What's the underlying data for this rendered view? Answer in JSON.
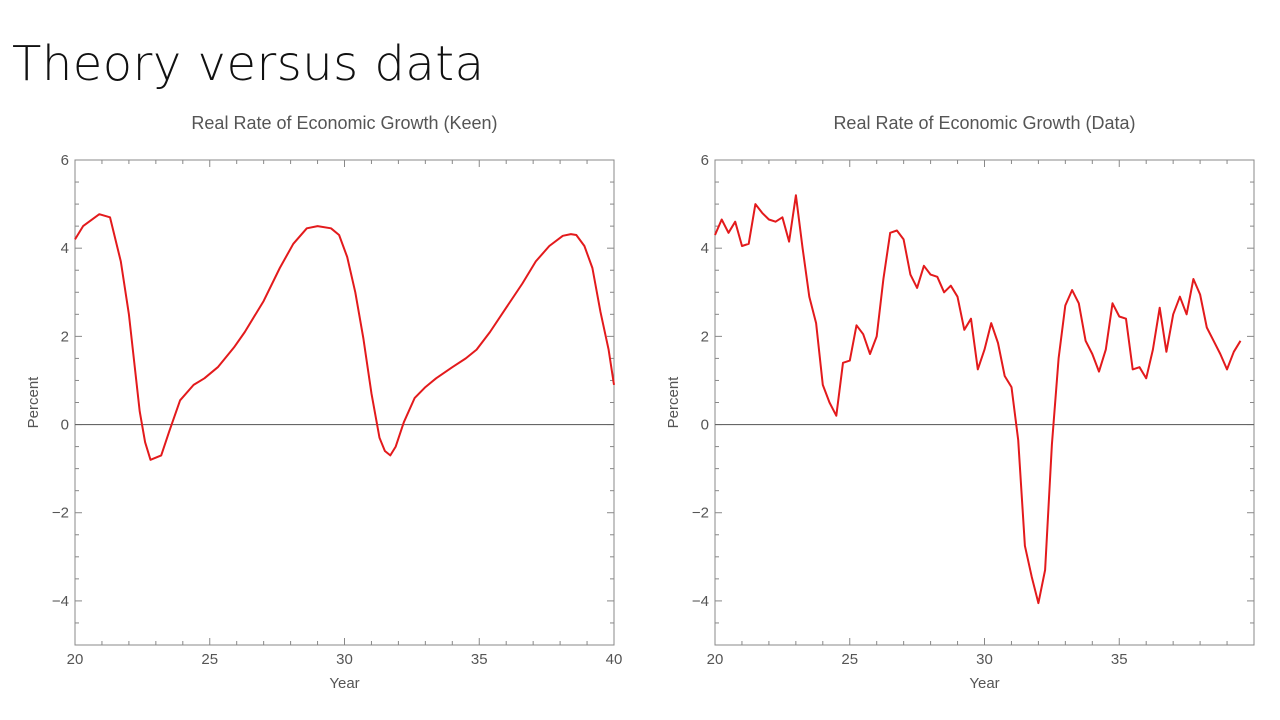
{
  "slide": {
    "title": "Theory versus data"
  },
  "chart_data": [
    {
      "type": "line",
      "title": "Real Rate of Economic Growth (Keen)",
      "xlabel": "Year",
      "ylabel": "Percent",
      "xlim": [
        20,
        40
      ],
      "ylim": [
        -5,
        6
      ],
      "xticks": [
        20,
        25,
        30,
        35,
        40
      ],
      "yticks": [
        6,
        4,
        2,
        0,
        -2,
        -4
      ],
      "grid": false,
      "line_color": "#e31a1c",
      "x": [
        20.0,
        20.3,
        20.9,
        21.3,
        21.7,
        22.0,
        22.2,
        22.4,
        22.6,
        22.8,
        23.2,
        23.5,
        23.9,
        24.4,
        24.8,
        25.3,
        25.9,
        26.3,
        27.0,
        27.6,
        28.1,
        28.6,
        29.0,
        29.5,
        29.8,
        30.1,
        30.4,
        30.7,
        31.0,
        31.3,
        31.5,
        31.7,
        31.9,
        32.2,
        32.6,
        33.0,
        33.4,
        34.0,
        34.5,
        34.9,
        35.4,
        36.0,
        36.6,
        37.1,
        37.6,
        38.1,
        38.4,
        38.6,
        38.9,
        39.2,
        39.5,
        39.8,
        40.0
      ],
      "y": [
        4.2,
        4.5,
        4.77,
        4.7,
        3.7,
        2.5,
        1.4,
        0.3,
        -0.4,
        -0.8,
        -0.7,
        -0.15,
        0.55,
        0.9,
        1.05,
        1.3,
        1.75,
        2.1,
        2.8,
        3.55,
        4.1,
        4.45,
        4.5,
        4.45,
        4.3,
        3.8,
        3.0,
        1.95,
        0.7,
        -0.3,
        -0.6,
        -0.7,
        -0.5,
        0.05,
        0.6,
        0.85,
        1.05,
        1.3,
        1.5,
        1.7,
        2.1,
        2.65,
        3.2,
        3.7,
        4.05,
        4.28,
        4.32,
        4.3,
        4.05,
        3.55,
        2.55,
        1.7,
        0.9
      ]
    },
    {
      "type": "line",
      "title": "Real Rate of Economic Growth (Data)",
      "xlabel": "Year",
      "ylabel": "Percent",
      "xlim": [
        20,
        40
      ],
      "ylim": [
        -5,
        6
      ],
      "xticks": [
        20,
        25,
        30,
        35
      ],
      "yticks": [
        6,
        4,
        2,
        0,
        -2,
        -4
      ],
      "grid": false,
      "line_color": "#e31a1c",
      "x": [
        20.0,
        20.25,
        20.5,
        20.75,
        21.0,
        21.25,
        21.5,
        21.75,
        22.0,
        22.25,
        22.5,
        22.75,
        23.0,
        23.25,
        23.5,
        23.75,
        24.0,
        24.25,
        24.5,
        24.75,
        25.0,
        25.25,
        25.5,
        25.75,
        26.0,
        26.25,
        26.5,
        26.75,
        27.0,
        27.25,
        27.5,
        27.75,
        28.0,
        28.25,
        28.5,
        28.75,
        29.0,
        29.25,
        29.5,
        29.75,
        30.0,
        30.25,
        30.5,
        30.75,
        31.0,
        31.25,
        31.5,
        31.75,
        32.0,
        32.25,
        32.5,
        32.75,
        33.0,
        33.25,
        33.5,
        33.75,
        34.0,
        34.25,
        34.5,
        34.75,
        35.0,
        35.25,
        35.5,
        35.75,
        36.0,
        36.25,
        36.5,
        36.75,
        37.0,
        37.25,
        37.5,
        37.75,
        38.0,
        38.25,
        38.5,
        38.75,
        39.0,
        39.25,
        39.5
      ],
      "y": [
        4.3,
        4.65,
        4.35,
        4.6,
        4.05,
        4.1,
        5.0,
        4.8,
        4.65,
        4.6,
        4.7,
        4.15,
        5.2,
        4.0,
        2.9,
        2.3,
        0.9,
        0.5,
        0.2,
        1.4,
        1.45,
        2.25,
        2.05,
        1.6,
        2.0,
        3.3,
        4.35,
        4.4,
        4.2,
        3.4,
        3.1,
        3.6,
        3.4,
        3.35,
        3.0,
        3.15,
        2.9,
        2.15,
        2.4,
        1.25,
        1.7,
        2.3,
        1.85,
        1.1,
        0.85,
        -0.35,
        -2.75,
        -3.45,
        -4.05,
        -3.3,
        -0.45,
        1.5,
        2.7,
        3.05,
        2.75,
        1.9,
        1.6,
        1.2,
        1.7,
        2.75,
        2.45,
        2.4,
        1.25,
        1.3,
        1.05,
        1.7,
        2.65,
        1.65,
        2.5,
        2.9,
        2.5,
        3.3,
        2.95,
        2.2,
        1.9,
        1.6,
        1.25,
        1.65,
        1.9
      ]
    }
  ]
}
